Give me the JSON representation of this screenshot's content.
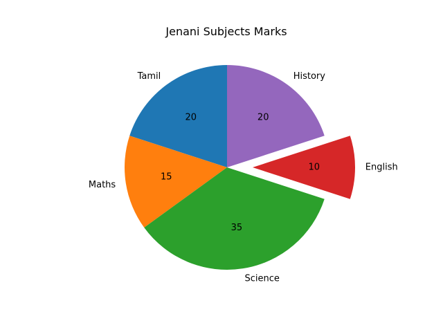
{
  "chart_data": {
    "type": "pie",
    "title": "Jenani Subjects Marks",
    "categories": [
      "Tamil",
      "Maths",
      "Science",
      "English",
      "History"
    ],
    "values": [
      20,
      15,
      35,
      10,
      20
    ],
    "value_labels": [
      "20",
      "15",
      "35",
      "10",
      "20"
    ],
    "colors": [
      "#1f77b4",
      "#ff7f0e",
      "#2ca02c",
      "#d62728",
      "#9467bd"
    ],
    "exploded_category": "English",
    "legend": "none"
  }
}
